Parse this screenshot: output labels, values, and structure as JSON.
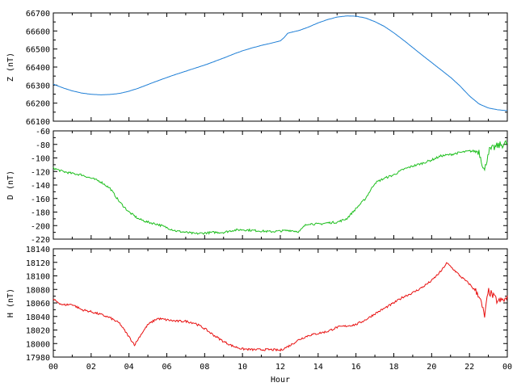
{
  "chart_data": [
    {
      "type": "line",
      "ylabel": "Z (nT)",
      "ylim": [
        66100,
        66700
      ],
      "yticks": [
        66100,
        66200,
        66300,
        66400,
        66500,
        66600,
        66700
      ],
      "xlim": [
        0,
        24
      ],
      "color": "#1f7fd6",
      "series": [
        {
          "x": [
            0,
            0.5,
            1,
            1.5,
            2,
            2.5,
            3,
            3.5,
            4,
            4.5,
            5,
            5.5,
            6,
            6.5,
            7,
            7.5,
            8,
            8.5,
            9,
            9.5,
            10,
            10.5,
            11,
            11.5,
            12,
            12.2,
            12.4,
            13,
            13.5,
            14,
            14.5,
            15,
            15.5,
            16,
            16.5,
            17,
            17.5,
            18,
            18.5,
            19,
            19.5,
            20,
            20.5,
            21,
            21.5,
            22,
            22.5,
            23,
            23.5,
            24
          ],
          "values": [
            66305,
            66285,
            66268,
            66256,
            66249,
            66246,
            66248,
            66254,
            66266,
            66283,
            66303,
            66323,
            66342,
            66360,
            66377,
            66394,
            66411,
            66430,
            66450,
            66471,
            66490,
            66506,
            66520,
            66532,
            66545,
            66563,
            66588,
            66603,
            66622,
            66645,
            66663,
            66677,
            66683,
            66682,
            66672,
            66652,
            66625,
            66590,
            66550,
            66508,
            66466,
            66425,
            66384,
            66343,
            66295,
            66240,
            66196,
            66173,
            66163,
            66158
          ]
        }
      ]
    },
    {
      "type": "line",
      "ylabel": "D (nT)",
      "ylim": [
        -220,
        -60
      ],
      "yticks": [
        -220,
        -200,
        -180,
        -160,
        -140,
        -120,
        -100,
        -80,
        -60
      ],
      "xlim": [
        0,
        24
      ],
      "color": "#1fbf1f",
      "series": [
        {
          "x": [
            0,
            0.5,
            1,
            1.5,
            2,
            2.5,
            3,
            3.5,
            4,
            4.5,
            5,
            5.5,
            6,
            6.5,
            7,
            7.5,
            8,
            8.5,
            9,
            9.5,
            10,
            10.5,
            11,
            11.5,
            12,
            12.5,
            13,
            13.3,
            13.5,
            14,
            14.5,
            15,
            15.5,
            16,
            16.5,
            17,
            17.5,
            18,
            18.5,
            19,
            19.5,
            20,
            20.5,
            21,
            21.5,
            22,
            22.5,
            22.8,
            23,
            23.5,
            24
          ],
          "values": [
            -115,
            -120,
            -123,
            -125,
            -130,
            -135,
            -145,
            -165,
            -180,
            -190,
            -195,
            -198,
            -203,
            -208,
            -210,
            -212,
            -211,
            -210,
            -210,
            -207,
            -206,
            -207,
            -208,
            -209,
            -208,
            -207,
            -209,
            -200,
            -197,
            -198,
            -196,
            -195,
            -190,
            -175,
            -160,
            -137,
            -130,
            -125,
            -117,
            -112,
            -108,
            -103,
            -97,
            -95,
            -92,
            -90,
            -90,
            -120,
            -90,
            -82,
            -78
          ]
        }
      ]
    },
    {
      "type": "line",
      "ylabel": "H (nT)",
      "xlabel": "Hour",
      "ylim": [
        17980,
        18140
      ],
      "yticks": [
        17980,
        18000,
        18020,
        18040,
        18060,
        18080,
        18100,
        18120,
        18140
      ],
      "xlim": [
        0,
        24
      ],
      "xticks": [
        "00",
        "02",
        "04",
        "06",
        "08",
        "10",
        "12",
        "14",
        "16",
        "18",
        "20",
        "22",
        "00"
      ],
      "color": "#e81010",
      "series": [
        {
          "x": [
            0,
            0.5,
            1,
            1.5,
            2,
            2.5,
            3,
            3.5,
            4,
            4.3,
            4.6,
            5,
            5.5,
            6,
            6.5,
            7,
            7.5,
            8,
            8.5,
            9,
            9.5,
            10,
            10.5,
            11,
            11.5,
            12,
            12.5,
            13,
            13.5,
            14,
            14.5,
            15,
            15.5,
            16,
            16.5,
            17,
            17.5,
            18,
            18.5,
            19,
            19.5,
            20,
            20.5,
            20.8,
            21,
            21.5,
            22,
            22.5,
            22.8,
            23,
            23.5,
            24
          ],
          "values": [
            18065,
            18057,
            18058,
            18050,
            18047,
            18043,
            18038,
            18030,
            18010,
            17998,
            18012,
            18028,
            18037,
            18035,
            18033,
            18033,
            18030,
            18022,
            18012,
            18003,
            17996,
            17992,
            17991,
            17991,
            17991,
            17990,
            17997,
            18006,
            18012,
            18015,
            18018,
            18024,
            18026,
            18028,
            18035,
            18044,
            18052,
            18060,
            18069,
            18075,
            18083,
            18093,
            18107,
            18119,
            18114,
            18100,
            18088,
            18072,
            18040,
            18078,
            18062,
            18066
          ]
        }
      ]
    }
  ]
}
